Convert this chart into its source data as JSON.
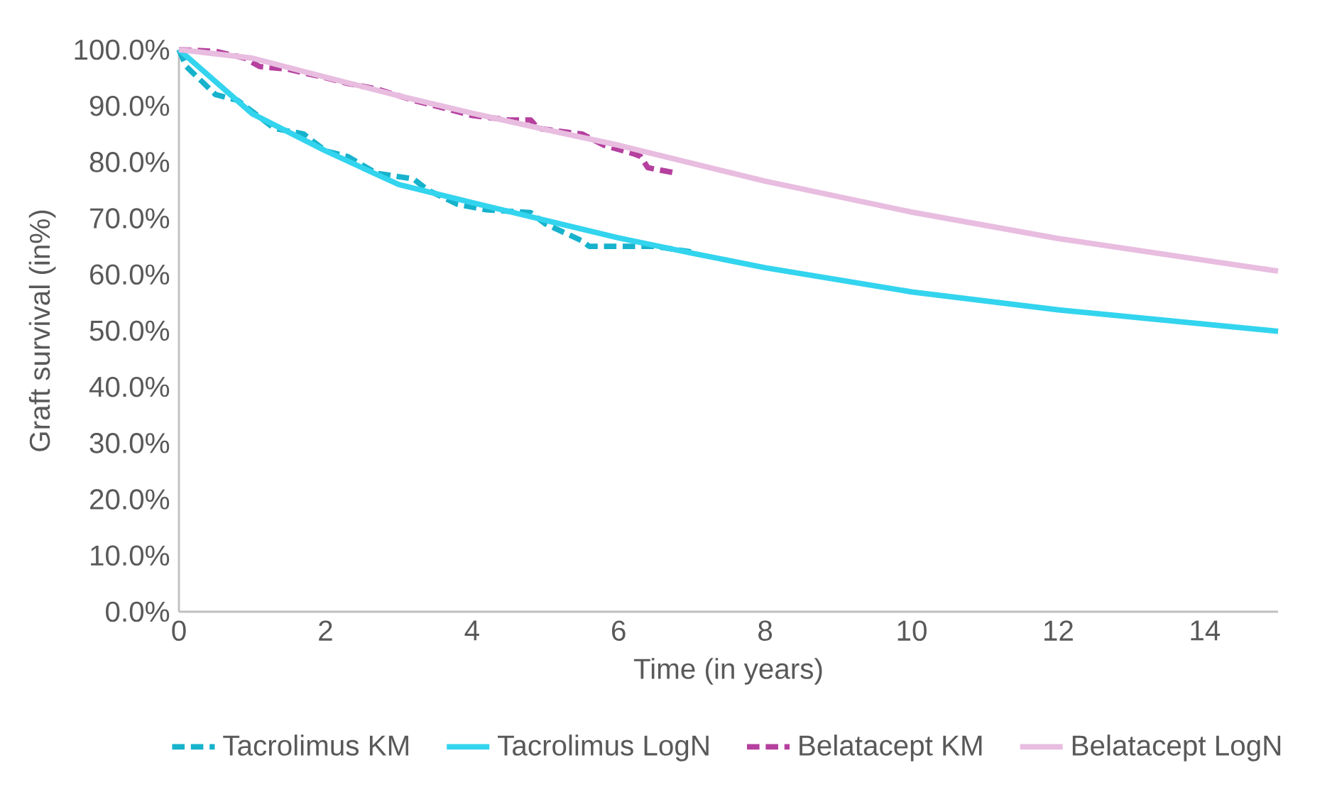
{
  "chart_data": {
    "type": "line",
    "xlabel": "Time (in years)",
    "ylabel": "Graft survival (in%)",
    "xlim": [
      0,
      15
    ],
    "xticks": [
      0,
      2,
      4,
      6,
      8,
      10,
      12,
      14
    ],
    "ylim": [
      0,
      100
    ],
    "yticks": [
      {
        "value": 0,
        "label": "0.0%"
      },
      {
        "value": 10,
        "label": "10.0%"
      },
      {
        "value": 20,
        "label": "20.0%"
      },
      {
        "value": 30,
        "label": "30.0%"
      },
      {
        "value": 40,
        "label": "40.0%"
      },
      {
        "value": 50,
        "label": "50.0%"
      },
      {
        "value": 60,
        "label": "60.0%"
      },
      {
        "value": 70,
        "label": "70.0%"
      },
      {
        "value": 80,
        "label": "80.0%"
      },
      {
        "value": 90,
        "label": "90.0%"
      },
      {
        "value": 100,
        "label": "100.0%"
      }
    ],
    "grid": false,
    "legend": "bottom",
    "marker": "none",
    "series": [
      {
        "name": "Tacrolimus KM",
        "color": "#17b2cc",
        "line_style": "dashed",
        "x": [
          0,
          0.1,
          0.5,
          0.8,
          1,
          1.3,
          1.7,
          2,
          2.3,
          2.7,
          3.2,
          3.4,
          3.8,
          4.2,
          4.8,
          5,
          5.5,
          5.6,
          6.5,
          7
        ],
        "values": [
          100,
          97,
          92,
          91,
          89,
          86,
          85,
          82,
          81,
          78,
          77,
          75,
          72.5,
          71.5,
          71,
          69,
          66,
          65,
          65,
          64
        ]
      },
      {
        "name": "Tacrolimus LogN",
        "color": "#33d4ee",
        "line_style": "solid",
        "x": [
          0,
          1,
          2,
          3,
          4,
          6,
          7,
          8,
          10,
          12,
          15
        ],
        "values": [
          100,
          88.6,
          82,
          76,
          72.8,
          66.5,
          63.8,
          61.2,
          56.9,
          53.7,
          49.9
        ]
      },
      {
        "name": "Belatacept KM",
        "color": "#b5409e",
        "line_style": "dashed",
        "x": [
          0,
          0.5,
          0.9,
          1.1,
          1.5,
          2,
          2.3,
          2.7,
          3.2,
          3.5,
          4,
          4.5,
          4.8,
          4.9,
          5.3,
          5.5,
          5.8,
          6.2,
          6.3,
          6.4,
          6.8
        ],
        "values": [
          100,
          99.7,
          98.5,
          97,
          96.5,
          95,
          94,
          93,
          91,
          90,
          88.3,
          87.5,
          87.5,
          86,
          85.3,
          85,
          83,
          81.5,
          81,
          79,
          78
        ]
      },
      {
        "name": "Belatacept LogN",
        "color": "#e8bde0",
        "line_style": "solid",
        "x": [
          0,
          1,
          2,
          3,
          4,
          5,
          6,
          7,
          8,
          10,
          12,
          15
        ],
        "values": [
          100,
          98.5,
          95.1,
          91.8,
          88.7,
          85.8,
          83,
          79.8,
          76.6,
          71.1,
          66.4,
          60.6
        ]
      }
    ]
  }
}
